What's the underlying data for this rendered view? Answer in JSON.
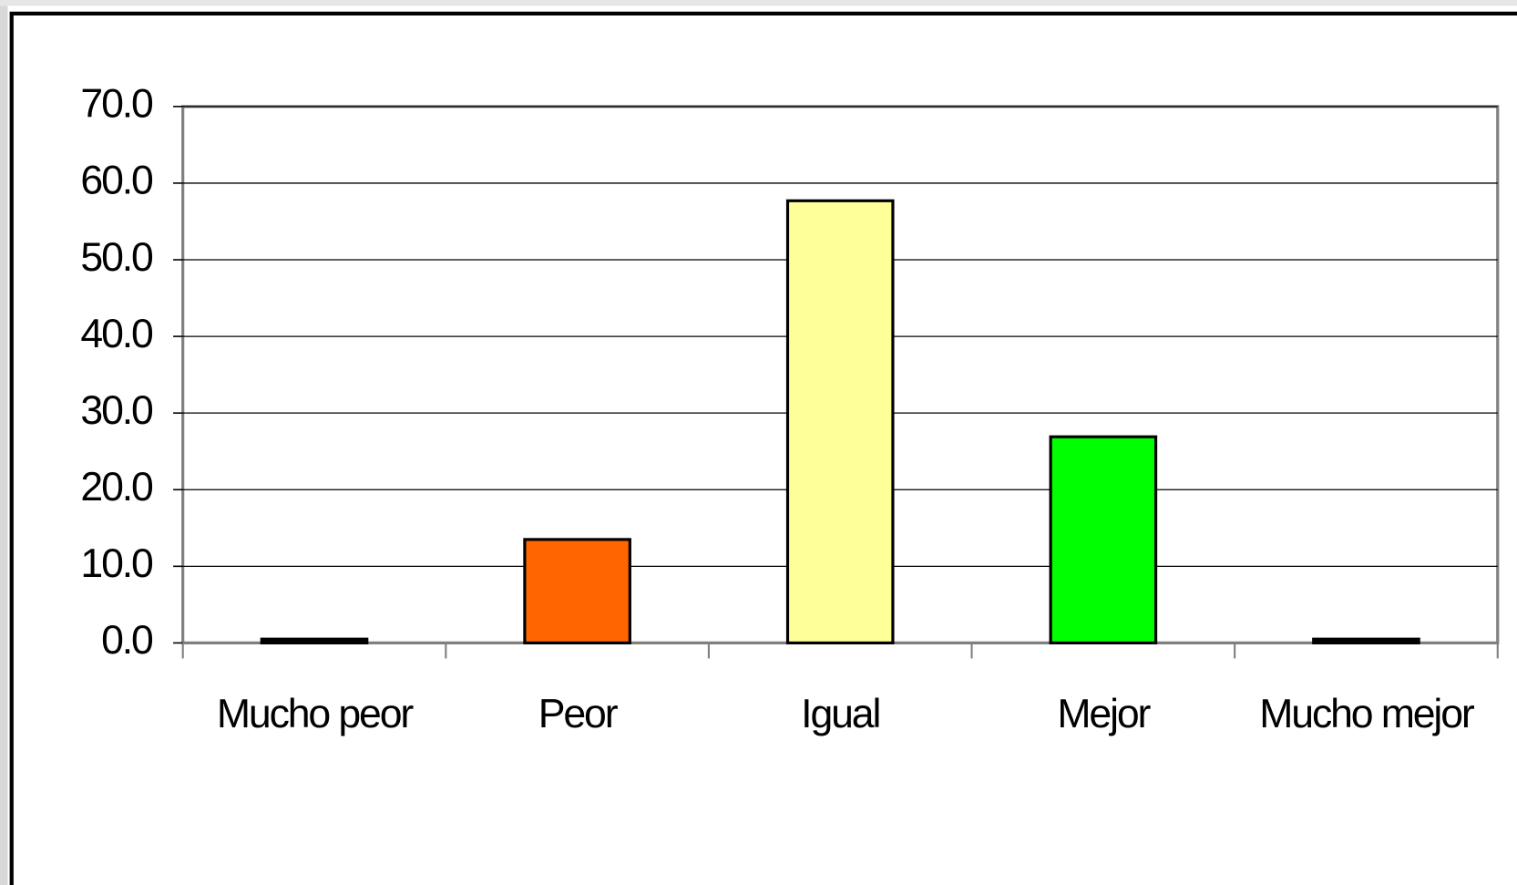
{
  "chart_data": {
    "type": "bar",
    "categories": [
      "Mucho peor",
      "Peor",
      "Igual",
      "Mejor",
      "Mucho mejor"
    ],
    "values": [
      0.5,
      13.5,
      57.7,
      26.9,
      0.5
    ],
    "colors": [
      "#000000",
      "#ff6600",
      "#ffff99",
      "#00ff00",
      "#000000"
    ],
    "ylim": [
      0,
      70
    ],
    "yticks": [
      {
        "value": 0,
        "label": "0.0"
      },
      {
        "value": 10,
        "label": "10.0"
      },
      {
        "value": 20,
        "label": "20.0"
      },
      {
        "value": 30,
        "label": "30.0"
      },
      {
        "value": 40,
        "label": "40.0"
      },
      {
        "value": 50,
        "label": "50.0"
      },
      {
        "value": 60,
        "label": "60.0"
      },
      {
        "value": 70,
        "label": "70.0"
      }
    ],
    "grid": true
  }
}
